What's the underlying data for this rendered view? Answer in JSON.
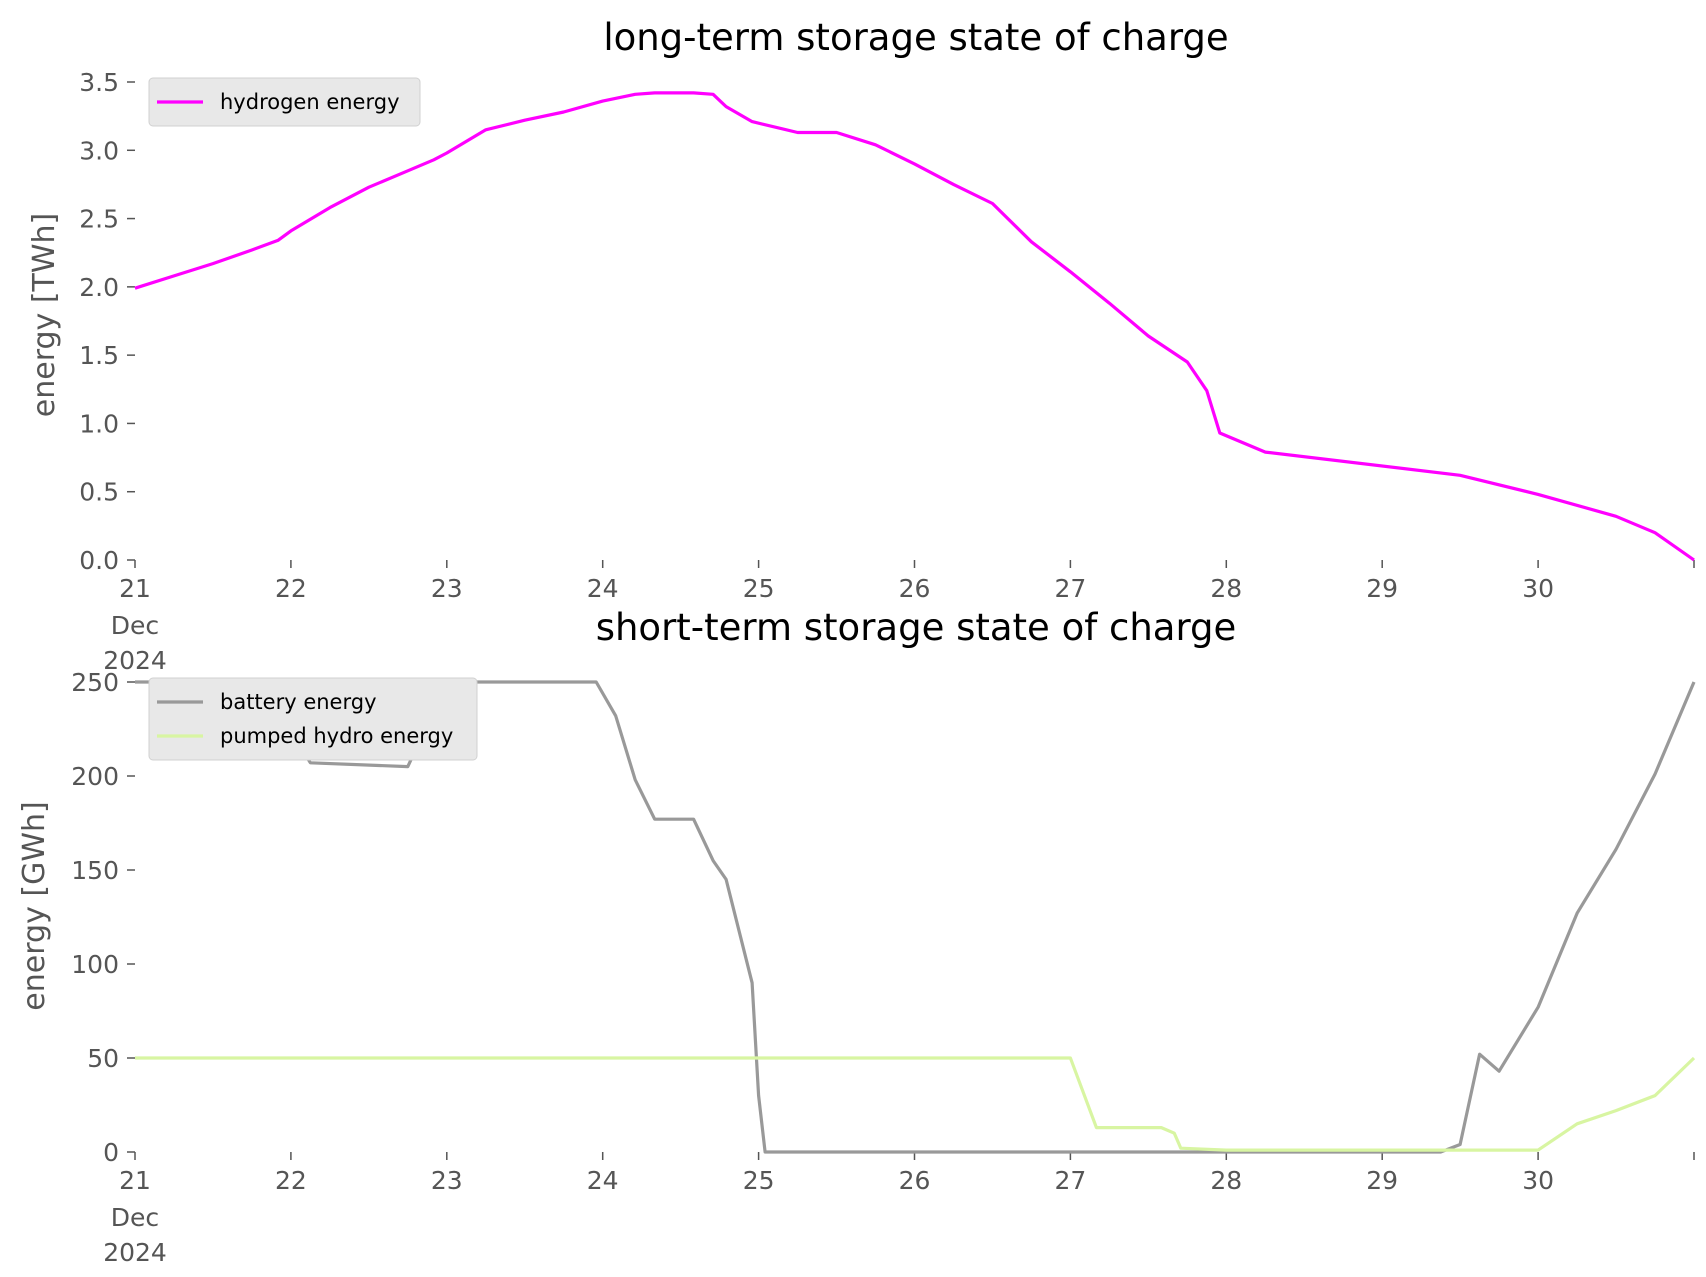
{
  "chart_data": [
    {
      "type": "line",
      "title": "long-term storage state of charge",
      "xlabel": "",
      "ylabel": "energy [TWh]",
      "ylim": [
        0,
        3.5
      ],
      "xlim": [
        "2024-12-21",
        "2024-12-31"
      ],
      "yticks": [
        "0.0",
        "0.5",
        "1.0",
        "1.5",
        "2.0",
        "2.5",
        "3.0",
        "3.5"
      ],
      "xticks": [
        {
          "date": "2024-12-21",
          "label": "21",
          "sub": [
            "Dec",
            "2024"
          ]
        },
        {
          "date": "2024-12-22",
          "label": "22"
        },
        {
          "date": "2024-12-23",
          "label": "23"
        },
        {
          "date": "2024-12-24",
          "label": "24"
        },
        {
          "date": "2024-12-25",
          "label": "25"
        },
        {
          "date": "2024-12-26",
          "label": "26"
        },
        {
          "date": "2024-12-27",
          "label": "27"
        },
        {
          "date": "2024-12-28",
          "label": "28"
        },
        {
          "date": "2024-12-29",
          "label": "29"
        },
        {
          "date": "2024-12-30",
          "label": "30"
        }
      ],
      "grid": false,
      "legend": "top-left",
      "series": [
        {
          "name": "hydrogen energy",
          "color": "#ff00ff",
          "x": [
            "2024-12-21 00:00",
            "2024-12-21 06:00",
            "2024-12-21 12:00",
            "2024-12-21 18:00",
            "2024-12-21 22:00",
            "2024-12-22 00:00",
            "2024-12-22 06:00",
            "2024-12-22 12:00",
            "2024-12-22 18:00",
            "2024-12-22 22:00",
            "2024-12-23 00:00",
            "2024-12-23 06:00",
            "2024-12-23 12:00",
            "2024-12-23 18:00",
            "2024-12-24 00:00",
            "2024-12-24 05:00",
            "2024-12-24 08:00",
            "2024-12-24 14:00",
            "2024-12-24 17:00",
            "2024-12-24 19:00",
            "2024-12-24 23:00",
            "2024-12-25 06:00",
            "2024-12-25 12:00",
            "2024-12-25 18:00",
            "2024-12-26 00:00",
            "2024-12-26 06:00",
            "2024-12-26 12:00",
            "2024-12-26 18:00",
            "2024-12-27 00:00",
            "2024-12-27 06:00",
            "2024-12-27 12:00",
            "2024-12-27 18:00",
            "2024-12-27 21:00",
            "2024-12-27 23:00",
            "2024-12-28 06:00",
            "2024-12-29 12:00",
            "2024-12-30 00:00",
            "2024-12-30 12:00",
            "2024-12-30 18:00",
            "2024-12-31 00:00"
          ],
          "y": [
            1.99,
            2.08,
            2.17,
            2.27,
            2.34,
            2.41,
            2.58,
            2.73,
            2.85,
            2.93,
            2.98,
            3.15,
            3.22,
            3.28,
            3.36,
            3.41,
            3.42,
            3.42,
            3.41,
            3.32,
            3.21,
            3.13,
            3.13,
            3.04,
            2.9,
            2.75,
            2.61,
            2.33,
            2.11,
            1.88,
            1.64,
            1.45,
            1.24,
            0.93,
            0.79,
            0.62,
            0.48,
            0.32,
            0.2,
            0.0
          ],
          "x_note_hidden": "",
          "values_note_hidden": ""
        }
      ]
    },
    {
      "type": "line",
      "title": "short-term storage state of charge",
      "xlabel": "",
      "ylabel": "energy [GWh]",
      "ylim": [
        0,
        250
      ],
      "xlim": [
        "2024-12-21",
        "2024-12-31"
      ],
      "yticks": [
        "0",
        "50",
        "100",
        "150",
        "200",
        "250"
      ],
      "xticks": [
        {
          "date": "2024-12-21",
          "label": "21",
          "sub": [
            "Dec",
            "2024"
          ]
        },
        {
          "date": "2024-12-22",
          "label": "22"
        },
        {
          "date": "2024-12-23",
          "label": "23"
        },
        {
          "date": "2024-12-24",
          "label": "24"
        },
        {
          "date": "2024-12-25",
          "label": "25"
        },
        {
          "date": "2024-12-26",
          "label": "26"
        },
        {
          "date": "2024-12-27",
          "label": "27"
        },
        {
          "date": "2024-12-28",
          "label": "28"
        },
        {
          "date": "2024-12-29",
          "label": "29"
        },
        {
          "date": "2024-12-30",
          "label": "30"
        }
      ],
      "grid": false,
      "legend": "top-left",
      "series": [
        {
          "name": "battery energy",
          "color": "#999999",
          "x": [
            "2024-12-21 00:00",
            "2024-12-21 23:00",
            "2024-12-22 01:00",
            "2024-12-22 03:00",
            "2024-12-22 18:00",
            "2024-12-23 00:00",
            "2024-12-23 23:00",
            "2024-12-24 02:00",
            "2024-12-24 05:00",
            "2024-12-24 08:00",
            "2024-12-24 14:00",
            "2024-12-24 17:00",
            "2024-12-24 19:00",
            "2024-12-24 23:00",
            "2024-12-25 00:00",
            "2024-12-25 01:00",
            "2024-12-29 09:00",
            "2024-12-29 12:00",
            "2024-12-29 15:00",
            "2024-12-29 18:00",
            "2024-12-30 00:00",
            "2024-12-30 06:00",
            "2024-12-30 12:00",
            "2024-12-30 18:00",
            "2024-12-31 00:00"
          ],
          "y": [
            250,
            250,
            218,
            207,
            205,
            250,
            250,
            232,
            198,
            177,
            177,
            155,
            145,
            90,
            30,
            0,
            0,
            4,
            52,
            43,
            77,
            127,
            161,
            201,
            250
          ]
        },
        {
          "name": "pumped hydro energy",
          "color": "#d8f5a2",
          "x": [
            "2024-12-21 00:00",
            "2024-12-27 00:00",
            "2024-12-27 04:00",
            "2024-12-27 14:00",
            "2024-12-27 16:00",
            "2024-12-27 17:00",
            "2024-12-28 00:00",
            "2024-12-30 00:00",
            "2024-12-30 06:00",
            "2024-12-30 12:00",
            "2024-12-30 18:00",
            "2024-12-31 00:00"
          ],
          "y": [
            50,
            50,
            13,
            13,
            10,
            2,
            1,
            1,
            15,
            22,
            30,
            50
          ]
        }
      ]
    }
  ]
}
